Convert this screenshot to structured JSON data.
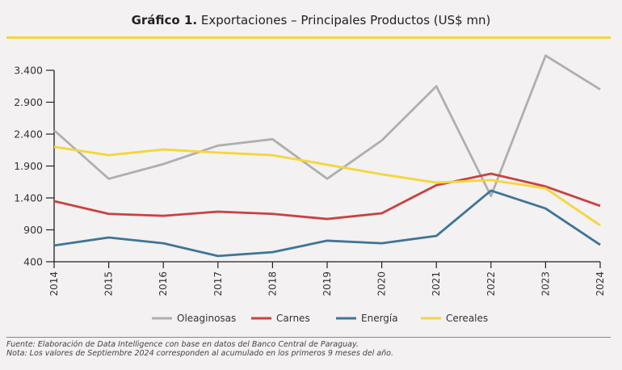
{
  "header": {
    "title_bold": "Gráfico 1.",
    "title_rest": " Exportaciones – Principales Productos (US$ mn)",
    "accent": "#f5d63a"
  },
  "footer": {
    "source": "Fuente: Elaboración de Data Intelligence con base en datos del Banco Central de Paraguay.",
    "note": "Nota: Los valores de Septiembre 2024 corresponden al acumulado en los primeros 9 meses del año."
  },
  "chart_data": {
    "type": "line",
    "title": "Gráfico 1. Exportaciones – Principales Productos (US$ mn)",
    "xlabel": "",
    "ylabel": "",
    "x": [
      "2014",
      "2015",
      "2016",
      "2017",
      "2018",
      "2019",
      "2020",
      "2021",
      "2022",
      "2023",
      "2024"
    ],
    "ylim": [
      400,
      3400
    ],
    "yticks": [
      400,
      900,
      1400,
      1900,
      2400,
      2900,
      3400
    ],
    "ytick_labels": [
      "400",
      "900",
      "1.400",
      "1.900",
      "2.400",
      "2.900",
      "3.400"
    ],
    "grid": false,
    "legend_position": "bottom",
    "series": [
      {
        "name": "Oleaginosas",
        "color": "#b0aeae",
        "values": [
          2460,
          1700,
          1930,
          2220,
          2320,
          1700,
          2300,
          3150,
          1430,
          3630,
          3100
        ]
      },
      {
        "name": "Carnes",
        "color": "#c8423f",
        "values": [
          1350,
          1150,
          1120,
          1185,
          1150,
          1070,
          1160,
          1600,
          1780,
          1580,
          1275
        ]
      },
      {
        "name": "Energía",
        "color": "#3f7598",
        "values": [
          655,
          780,
          690,
          490,
          550,
          730,
          690,
          805,
          1515,
          1235,
          665
        ]
      },
      {
        "name": "Cereales",
        "color": "#f5d63a",
        "values": [
          2200,
          2070,
          2160,
          2110,
          2070,
          1920,
          1770,
          1640,
          1680,
          1550,
          970
        ]
      }
    ]
  }
}
